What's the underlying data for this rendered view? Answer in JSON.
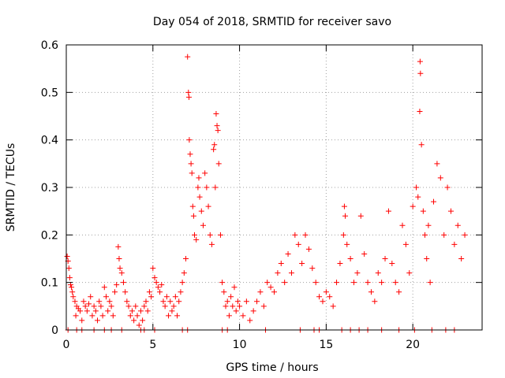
{
  "chart_data": {
    "type": "scatter",
    "title": "Day 054 of 2018, SRMTID for receiver savo",
    "xlabel": "GPS time / hours",
    "ylabel": "SRMTID / TECUs",
    "xlim": [
      0,
      24
    ],
    "ylim": [
      0,
      0.6
    ],
    "xticks": [
      0,
      5,
      10,
      15,
      20
    ],
    "xtick_labels": [
      "0",
      "5",
      "10",
      "15",
      "20"
    ],
    "yticks": [
      0,
      0.1,
      0.2,
      0.3,
      0.4,
      0.5,
      0.6
    ],
    "ytick_labels": [
      "0",
      "0.1",
      "0.2",
      "0.3",
      "0.4",
      "0.5",
      "0.6"
    ],
    "grid": true,
    "marker": "+",
    "color": "#ff0000",
    "series": [
      {
        "name": "SRMTID",
        "points": [
          [
            0.05,
            0.155
          ],
          [
            0.1,
            0.145
          ],
          [
            0.15,
            0.13
          ],
          [
            0.2,
            0.11
          ],
          [
            0.25,
            0.095
          ],
          [
            0.3,
            0.09
          ],
          [
            0.35,
            0.08
          ],
          [
            0.4,
            0.07
          ],
          [
            0.5,
            0.06
          ],
          [
            0.55,
            0.03
          ],
          [
            0.6,
            0.05
          ],
          [
            0.7,
            0.045
          ],
          [
            0.8,
            0.04
          ],
          [
            0.9,
            0.02
          ],
          [
            1.0,
            0.06
          ],
          [
            1.1,
            0.05
          ],
          [
            1.2,
            0.04
          ],
          [
            1.3,
            0.055
          ],
          [
            1.4,
            0.07
          ],
          [
            1.5,
            0.03
          ],
          [
            1.6,
            0.05
          ],
          [
            1.7,
            0.04
          ],
          [
            1.8,
            0.02
          ],
          [
            1.9,
            0.06
          ],
          [
            2.0,
            0.05
          ],
          [
            2.1,
            0.03
          ],
          [
            2.2,
            0.09
          ],
          [
            2.3,
            0.07
          ],
          [
            2.4,
            0.04
          ],
          [
            2.5,
            0.06
          ],
          [
            2.6,
            0.05
          ],
          [
            2.7,
            0.03
          ],
          [
            2.8,
            0.08
          ],
          [
            2.9,
            0.095
          ],
          [
            3.0,
            0.175
          ],
          [
            3.05,
            0.15
          ],
          [
            3.1,
            0.13
          ],
          [
            3.2,
            0.12
          ],
          [
            3.3,
            0.1
          ],
          [
            3.4,
            0.08
          ],
          [
            3.5,
            0.06
          ],
          [
            3.6,
            0.05
          ],
          [
            3.7,
            0.03
          ],
          [
            3.8,
            0.04
          ],
          [
            3.9,
            0.02
          ],
          [
            4.0,
            0.05
          ],
          [
            4.1,
            0.03
          ],
          [
            4.2,
            0.01
          ],
          [
            4.3,
            0.04
          ],
          [
            4.4,
            0.02
          ],
          [
            4.5,
            0.05
          ],
          [
            4.6,
            0.06
          ],
          [
            4.7,
            0.04
          ],
          [
            4.8,
            0.08
          ],
          [
            4.9,
            0.07
          ],
          [
            5.0,
            0.13
          ],
          [
            5.1,
            0.11
          ],
          [
            5.2,
            0.1
          ],
          [
            5.3,
            0.09
          ],
          [
            5.4,
            0.08
          ],
          [
            5.5,
            0.095
          ],
          [
            5.6,
            0.06
          ],
          [
            5.7,
            0.05
          ],
          [
            5.8,
            0.07
          ],
          [
            5.9,
            0.03
          ],
          [
            6.0,
            0.06
          ],
          [
            6.1,
            0.04
          ],
          [
            6.2,
            0.05
          ],
          [
            6.3,
            0.07
          ],
          [
            6.4,
            0.03
          ],
          [
            6.5,
            0.06
          ],
          [
            6.6,
            0.08
          ],
          [
            6.7,
            0.1
          ],
          [
            6.8,
            0.12
          ],
          [
            6.9,
            0.15
          ],
          [
            7.0,
            0.575
          ],
          [
            7.05,
            0.5
          ],
          [
            7.08,
            0.49
          ],
          [
            7.1,
            0.4
          ],
          [
            7.15,
            0.37
          ],
          [
            7.2,
            0.35
          ],
          [
            7.25,
            0.33
          ],
          [
            7.3,
            0.26
          ],
          [
            7.35,
            0.24
          ],
          [
            7.4,
            0.2
          ],
          [
            7.5,
            0.19
          ],
          [
            7.6,
            0.3
          ],
          [
            7.65,
            0.32
          ],
          [
            7.7,
            0.28
          ],
          [
            7.8,
            0.25
          ],
          [
            7.9,
            0.22
          ],
          [
            8.0,
            0.33
          ],
          [
            8.1,
            0.3
          ],
          [
            8.2,
            0.26
          ],
          [
            8.3,
            0.2
          ],
          [
            8.4,
            0.18
          ],
          [
            8.5,
            0.38
          ],
          [
            8.55,
            0.39
          ],
          [
            8.6,
            0.3
          ],
          [
            8.65,
            0.455
          ],
          [
            8.7,
            0.43
          ],
          [
            8.75,
            0.42
          ],
          [
            8.8,
            0.35
          ],
          [
            8.9,
            0.2
          ],
          [
            9.0,
            0.1
          ],
          [
            9.1,
            0.08
          ],
          [
            9.2,
            0.05
          ],
          [
            9.3,
            0.06
          ],
          [
            9.4,
            0.03
          ],
          [
            9.5,
            0.07
          ],
          [
            9.6,
            0.05
          ],
          [
            9.7,
            0.09
          ],
          [
            9.8,
            0.04
          ],
          [
            9.9,
            0.06
          ],
          [
            10.0,
            0.05
          ],
          [
            10.2,
            0.03
          ],
          [
            10.4,
            0.06
          ],
          [
            10.6,
            0.02
          ],
          [
            10.8,
            0.04
          ],
          [
            11.0,
            0.06
          ],
          [
            11.2,
            0.08
          ],
          [
            11.4,
            0.05
          ],
          [
            11.6,
            0.1
          ],
          [
            11.8,
            0.09
          ],
          [
            12.0,
            0.08
          ],
          [
            12.2,
            0.12
          ],
          [
            12.4,
            0.14
          ],
          [
            12.6,
            0.1
          ],
          [
            12.8,
            0.16
          ],
          [
            13.0,
            0.12
          ],
          [
            13.2,
            0.2
          ],
          [
            13.4,
            0.18
          ],
          [
            13.6,
            0.14
          ],
          [
            13.8,
            0.2
          ],
          [
            14.0,
            0.17
          ],
          [
            14.2,
            0.13
          ],
          [
            14.4,
            0.1
          ],
          [
            14.6,
            0.07
          ],
          [
            14.8,
            0.06
          ],
          [
            15.0,
            0.08
          ],
          [
            15.2,
            0.07
          ],
          [
            15.4,
            0.05
          ],
          [
            15.6,
            0.1
          ],
          [
            15.8,
            0.14
          ],
          [
            16.0,
            0.2
          ],
          [
            16.05,
            0.26
          ],
          [
            16.1,
            0.24
          ],
          [
            16.2,
            0.18
          ],
          [
            16.4,
            0.15
          ],
          [
            16.6,
            0.1
          ],
          [
            16.8,
            0.12
          ],
          [
            17.0,
            0.24
          ],
          [
            17.2,
            0.16
          ],
          [
            17.4,
            0.1
          ],
          [
            17.6,
            0.08
          ],
          [
            17.8,
            0.06
          ],
          [
            18.0,
            0.12
          ],
          [
            18.2,
            0.1
          ],
          [
            18.4,
            0.15
          ],
          [
            18.6,
            0.25
          ],
          [
            18.8,
            0.14
          ],
          [
            19.0,
            0.1
          ],
          [
            19.2,
            0.08
          ],
          [
            19.4,
            0.22
          ],
          [
            19.6,
            0.18
          ],
          [
            19.8,
            0.12
          ],
          [
            20.0,
            0.26
          ],
          [
            20.2,
            0.3
          ],
          [
            20.3,
            0.28
          ],
          [
            20.4,
            0.46
          ],
          [
            20.42,
            0.565
          ],
          [
            20.44,
            0.54
          ],
          [
            20.5,
            0.39
          ],
          [
            20.6,
            0.25
          ],
          [
            20.7,
            0.2
          ],
          [
            20.8,
            0.15
          ],
          [
            20.9,
            0.22
          ],
          [
            21.0,
            0.1
          ],
          [
            21.2,
            0.27
          ],
          [
            21.4,
            0.35
          ],
          [
            21.6,
            0.32
          ],
          [
            21.8,
            0.2
          ],
          [
            22.0,
            0.3
          ],
          [
            22.2,
            0.25
          ],
          [
            22.4,
            0.18
          ],
          [
            22.6,
            0.22
          ],
          [
            22.8,
            0.15
          ],
          [
            23.0,
            0.2
          ]
        ]
      }
    ],
    "zero_points_x": [
      0.1,
      0.6,
      0.9,
      1.6,
      2.2,
      2.6,
      3.2,
      4.3,
      4.5,
      5.1,
      6.7,
      7.0,
      9.0,
      9.3,
      11.5,
      13.5,
      14.3,
      14.6,
      15.9,
      16.4,
      16.9,
      17.4,
      18.2,
      19.2,
      20.1,
      21.1,
      21.9,
      22.4
    ]
  }
}
